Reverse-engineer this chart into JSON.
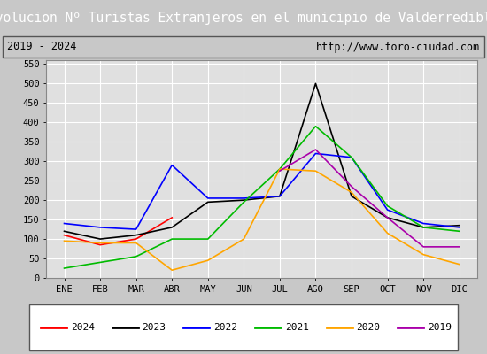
{
  "title": "Evolucion Nº Turistas Extranjeros en el municipio de Valderredible",
  "subtitle_left": "2019 - 2024",
  "subtitle_right": "http://www.foro-ciudad.com",
  "months": [
    "ENE",
    "FEB",
    "MAR",
    "ABR",
    "MAY",
    "JUN",
    "JUL",
    "AGO",
    "SEP",
    "OCT",
    "NOV",
    "DIC"
  ],
  "ylim": [
    0,
    560
  ],
  "yticks": [
    0,
    50,
    100,
    150,
    200,
    250,
    300,
    350,
    400,
    450,
    500,
    550
  ],
  "series": {
    "2024": {
      "color": "#ff0000",
      "values": [
        110,
        85,
        100,
        155,
        null,
        null,
        null,
        null,
        null,
        null,
        null,
        null
      ]
    },
    "2023": {
      "color": "#000000",
      "values": [
        120,
        100,
        110,
        130,
        195,
        200,
        210,
        500,
        210,
        155,
        130,
        135
      ]
    },
    "2022": {
      "color": "#0000ff",
      "values": [
        140,
        130,
        125,
        290,
        205,
        205,
        210,
        320,
        310,
        175,
        140,
        130
      ]
    },
    "2021": {
      "color": "#00bb00",
      "values": [
        25,
        40,
        55,
        100,
        100,
        195,
        280,
        390,
        310,
        185,
        130,
        120
      ]
    },
    "2020": {
      "color": "#ffa500",
      "values": [
        95,
        90,
        90,
        20,
        45,
        100,
        280,
        275,
        220,
        115,
        60,
        35
      ]
    },
    "2019": {
      "color": "#aa00aa",
      "values": [
        null,
        null,
        null,
        null,
        null,
        null,
        275,
        330,
        235,
        155,
        80,
        80
      ]
    }
  },
  "title_bg": "#4472c4",
  "title_color": "#ffffff",
  "plot_bg": "#e0e0e0",
  "grid_color": "#ffffff",
  "fig_bg": "#c8c8c8",
  "legend_order": [
    "2024",
    "2023",
    "2022",
    "2021",
    "2020",
    "2019"
  ],
  "title_fontsize": 10.5,
  "subtitle_fontsize": 8.5,
  "tick_fontsize": 7.5,
  "legend_fontsize": 8
}
